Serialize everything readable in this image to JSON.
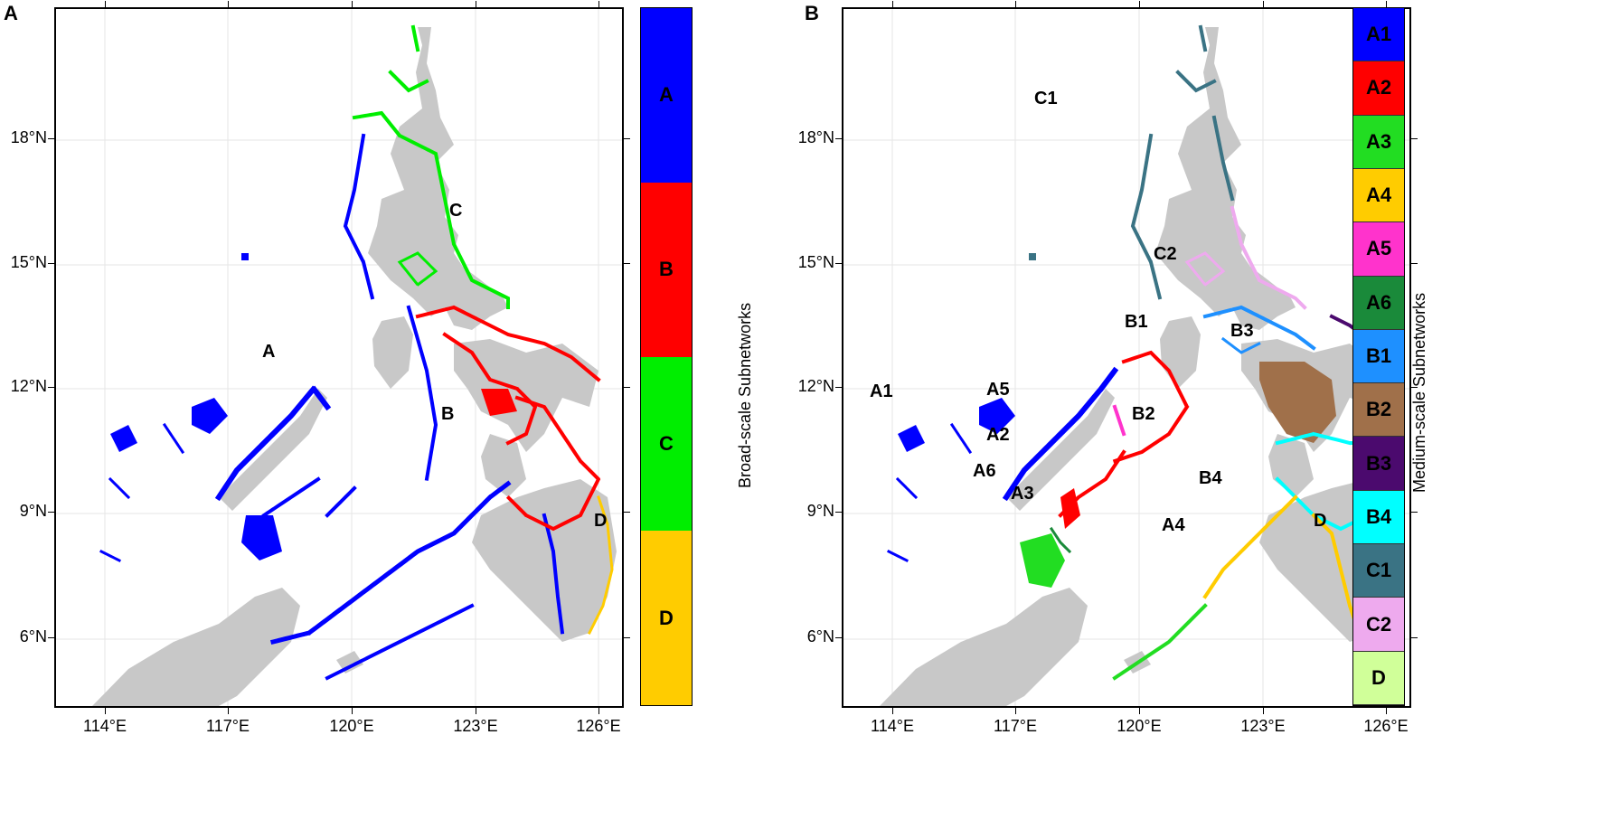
{
  "panels": [
    {
      "id": "a",
      "letter": "A",
      "legend_title": "Broad-scale Subnetworks",
      "legend": [
        {
          "label": "A",
          "color": "#0000ff"
        },
        {
          "label": "B",
          "color": "#ff0000"
        },
        {
          "label": "C",
          "color": "#00ee00"
        },
        {
          "label": "D",
          "color": "#ffcc00"
        }
      ],
      "region_labels": [
        "A",
        "B",
        "C",
        "D"
      ]
    },
    {
      "id": "b",
      "letter": "B",
      "legend_title": "Medium-scale Subnetworks",
      "legend": [
        {
          "label": "A1",
          "color": "#0000ff"
        },
        {
          "label": "A2",
          "color": "#ff0000"
        },
        {
          "label": "A3",
          "color": "#22dd22"
        },
        {
          "label": "A4",
          "color": "#ffcc00"
        },
        {
          "label": "A5",
          "color": "#ff33cc"
        },
        {
          "label": "A6",
          "color": "#1a8a3a"
        },
        {
          "label": "B1",
          "color": "#1e90ff"
        },
        {
          "label": "B2",
          "color": "#a0704a"
        },
        {
          "label": "B3",
          "color": "#4b0a6e"
        },
        {
          "label": "B4",
          "color": "#00ffff"
        },
        {
          "label": "C1",
          "color": "#3a7384"
        },
        {
          "label": "C2",
          "color": "#eeaaee"
        },
        {
          "label": "D",
          "color": "#d0ff99"
        }
      ],
      "region_labels": [
        "A1",
        "A2",
        "A3",
        "A4",
        "A5",
        "A6",
        "B1",
        "B2",
        "B3",
        "B4",
        "C1",
        "C2",
        "D"
      ]
    }
  ],
  "axes": {
    "y_ticks": [
      "18°N",
      "15°N",
      "12°N",
      "9°N",
      "6°N"
    ],
    "x_ticks": [
      "114°E",
      "117°E",
      "120°E",
      "123°E",
      "126°E"
    ]
  },
  "colors": {
    "land": "#c8c8c8",
    "grid": "#e6e6e6"
  }
}
